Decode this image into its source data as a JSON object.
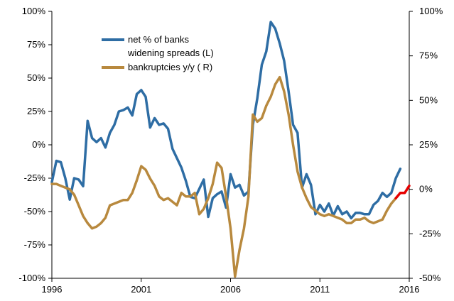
{
  "chart_data": {
    "type": "line",
    "x_ticks": [
      "1996",
      "2001",
      "2006",
      "2011",
      "2016"
    ],
    "xlim": [
      1996,
      2016
    ],
    "left_axis": {
      "ylim": [
        -100,
        100
      ],
      "ticks": [
        "100%",
        "75%",
        "50%",
        "25%",
        "0%",
        "-25%",
        "-50%",
        "-75%",
        "-100%"
      ],
      "tick_values": [
        100,
        75,
        50,
        25,
        0,
        -25,
        -50,
        -75,
        -100
      ]
    },
    "right_axis": {
      "ylim": [
        -50,
        100
      ],
      "ticks": [
        "100%",
        "75%",
        "50%",
        "25%",
        "0%",
        "-25%",
        "-50%"
      ],
      "tick_values": [
        100,
        75,
        50,
        25,
        0,
        -25,
        -50
      ]
    },
    "legend": {
      "placement": "top-center",
      "lines": [
        "net % of banks",
        "widening spreads (L)",
        "bankruptcies y/y ( R)"
      ]
    },
    "grid": false,
    "series": [
      {
        "name": "net % of banks widening spreads (L)",
        "axis": "left",
        "color": "#2E6DA4",
        "points": [
          [
            1996.0,
            -28
          ],
          [
            1996.25,
            -12
          ],
          [
            1996.5,
            -13
          ],
          [
            1996.75,
            -25
          ],
          [
            1997.0,
            -41
          ],
          [
            1997.25,
            -25
          ],
          [
            1997.5,
            -26
          ],
          [
            1997.75,
            -31
          ],
          [
            1998.0,
            18
          ],
          [
            1998.25,
            5
          ],
          [
            1998.5,
            2
          ],
          [
            1998.75,
            5
          ],
          [
            1999.0,
            -2
          ],
          [
            1999.25,
            9
          ],
          [
            1999.5,
            15
          ],
          [
            1999.75,
            25
          ],
          [
            2000.0,
            26
          ],
          [
            2000.25,
            28
          ],
          [
            2000.5,
            22
          ],
          [
            2000.75,
            38
          ],
          [
            2001.0,
            41
          ],
          [
            2001.25,
            36
          ],
          [
            2001.5,
            13
          ],
          [
            2001.75,
            20
          ],
          [
            2002.0,
            15
          ],
          [
            2002.25,
            16
          ],
          [
            2002.5,
            12
          ],
          [
            2002.75,
            -3
          ],
          [
            2003.0,
            -10
          ],
          [
            2003.25,
            -17
          ],
          [
            2003.5,
            -27
          ],
          [
            2003.75,
            -39
          ],
          [
            2004.0,
            -40
          ],
          [
            2004.25,
            -33
          ],
          [
            2004.5,
            -26
          ],
          [
            2004.75,
            -54
          ],
          [
            2005.0,
            -40
          ],
          [
            2005.25,
            -37
          ],
          [
            2005.5,
            -35
          ],
          [
            2005.75,
            -47
          ],
          [
            2006.0,
            -22
          ],
          [
            2006.25,
            -32
          ],
          [
            2006.5,
            -30
          ],
          [
            2006.75,
            -38
          ],
          [
            2007.0,
            -35
          ],
          [
            2007.25,
            15
          ],
          [
            2007.5,
            35
          ],
          [
            2007.75,
            60
          ],
          [
            2008.0,
            70
          ],
          [
            2008.25,
            92
          ],
          [
            2008.5,
            87
          ],
          [
            2008.75,
            76
          ],
          [
            2009.0,
            63
          ],
          [
            2009.25,
            40
          ],
          [
            2009.5,
            15
          ],
          [
            2009.75,
            9
          ],
          [
            2010.0,
            -32
          ],
          [
            2010.25,
            -22
          ],
          [
            2010.5,
            -30
          ],
          [
            2010.75,
            -52
          ],
          [
            2011.0,
            -45
          ],
          [
            2011.25,
            -50
          ],
          [
            2011.5,
            -44
          ],
          [
            2011.75,
            -53
          ],
          [
            2012.0,
            -46
          ],
          [
            2012.25,
            -52
          ],
          [
            2012.5,
            -50
          ],
          [
            2012.75,
            -55
          ],
          [
            2013.0,
            -51
          ],
          [
            2013.25,
            -51
          ],
          [
            2013.5,
            -52
          ],
          [
            2013.75,
            -52
          ],
          [
            2014.0,
            -45
          ],
          [
            2014.25,
            -42
          ],
          [
            2014.5,
            -36
          ],
          [
            2014.75,
            -39
          ],
          [
            2015.0,
            -36
          ],
          [
            2015.25,
            -25
          ],
          [
            2015.5,
            -18
          ]
        ]
      },
      {
        "name": "bankruptcies y/y ( R)",
        "axis": "right",
        "color": "#B8893E",
        "points": [
          [
            1996.0,
            3
          ],
          [
            1996.25,
            3
          ],
          [
            1996.5,
            2
          ],
          [
            1996.75,
            1
          ],
          [
            1997.0,
            0
          ],
          [
            1997.25,
            -3
          ],
          [
            1997.5,
            -9
          ],
          [
            1997.75,
            -15
          ],
          [
            1998.0,
            -19
          ],
          [
            1998.25,
            -22
          ],
          [
            1998.5,
            -21
          ],
          [
            1998.75,
            -19
          ],
          [
            1999.0,
            -16
          ],
          [
            1999.25,
            -9
          ],
          [
            1999.5,
            -8
          ],
          [
            1999.75,
            -7
          ],
          [
            2000.0,
            -6
          ],
          [
            2000.25,
            -6
          ],
          [
            2000.5,
            -2
          ],
          [
            2000.75,
            5
          ],
          [
            2001.0,
            13
          ],
          [
            2001.25,
            11
          ],
          [
            2001.5,
            6
          ],
          [
            2001.75,
            2
          ],
          [
            2002.0,
            -4
          ],
          [
            2002.25,
            -6
          ],
          [
            2002.5,
            -5
          ],
          [
            2002.75,
            -7
          ],
          [
            2003.0,
            -9
          ],
          [
            2003.25,
            -2
          ],
          [
            2003.5,
            -4
          ],
          [
            2003.75,
            -4
          ],
          [
            2004.0,
            -2
          ],
          [
            2004.25,
            -14
          ],
          [
            2004.5,
            -11
          ],
          [
            2004.75,
            -5
          ],
          [
            2005.0,
            3
          ],
          [
            2005.25,
            15
          ],
          [
            2005.5,
            12
          ],
          [
            2005.75,
            -4
          ],
          [
            2006.0,
            -22
          ],
          [
            2006.25,
            -49
          ],
          [
            2006.5,
            -34
          ],
          [
            2006.75,
            -22
          ],
          [
            2007.0,
            -4
          ],
          [
            2007.25,
            42
          ],
          [
            2007.5,
            38
          ],
          [
            2007.75,
            40
          ],
          [
            2008.0,
            47
          ],
          [
            2008.25,
            52
          ],
          [
            2008.5,
            59
          ],
          [
            2008.75,
            63
          ],
          [
            2009.0,
            55
          ],
          [
            2009.25,
            42
          ],
          [
            2009.5,
            25
          ],
          [
            2009.75,
            10
          ],
          [
            2010.0,
            1
          ],
          [
            2010.25,
            -5
          ],
          [
            2010.5,
            -10
          ],
          [
            2010.75,
            -12
          ],
          [
            2011.0,
            -14
          ],
          [
            2011.25,
            -15
          ],
          [
            2011.5,
            -14
          ],
          [
            2011.75,
            -15
          ],
          [
            2012.0,
            -16
          ],
          [
            2012.25,
            -17
          ],
          [
            2012.5,
            -19
          ],
          [
            2012.75,
            -19
          ],
          [
            2013.0,
            -17
          ],
          [
            2013.25,
            -17
          ],
          [
            2013.5,
            -16
          ],
          [
            2013.75,
            -18
          ],
          [
            2014.0,
            -19
          ],
          [
            2014.25,
            -18
          ],
          [
            2014.5,
            -17
          ],
          [
            2014.75,
            -12
          ],
          [
            2015.0,
            -8
          ],
          [
            2015.25,
            -5
          ]
        ]
      },
      {
        "name": "",
        "axis": "right",
        "color": "#E60000",
        "points": [
          [
            2015.25,
            -5
          ],
          [
            2015.5,
            -2
          ],
          [
            2015.75,
            -2
          ],
          [
            2016.0,
            2
          ]
        ]
      }
    ]
  }
}
